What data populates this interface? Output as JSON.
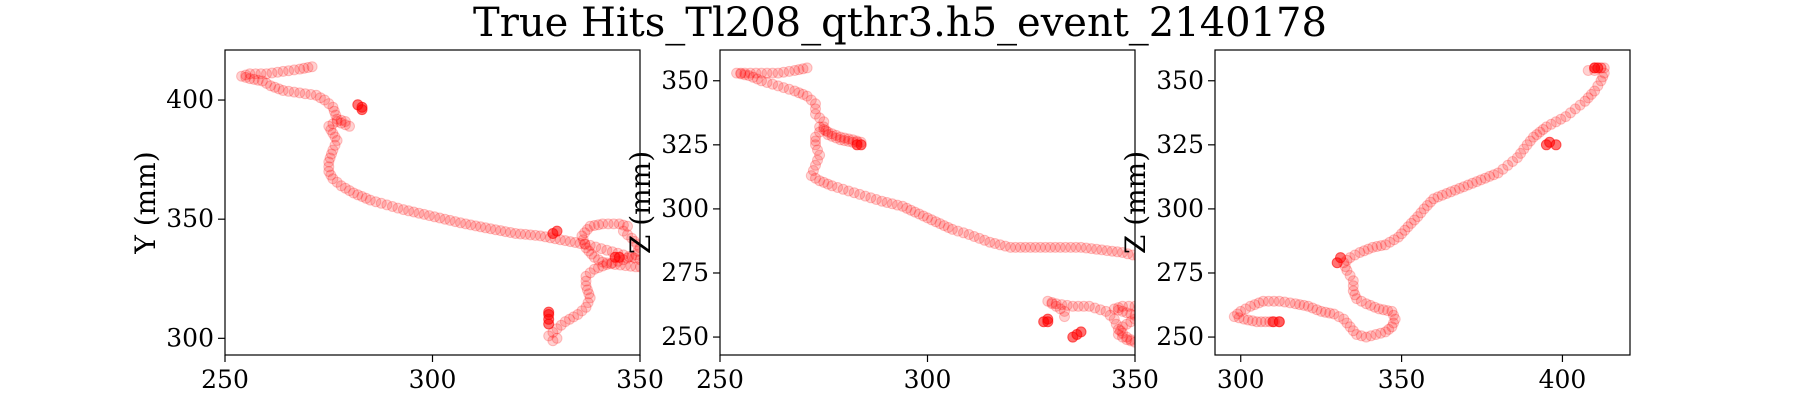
{
  "title": "True Hits_Tl208_qthr3.h5_event_2140178",
  "chart_data": [
    {
      "type": "scatter",
      "xlabel": "",
      "ylabel": "Y (mm)",
      "xlim": [
        250,
        350
      ],
      "ylim": [
        293,
        421
      ],
      "xticks": [
        250,
        300,
        350
      ],
      "yticks": [
        300,
        350,
        400
      ],
      "color": "#ff0000",
      "trace": [
        [
          271,
          414
        ],
        [
          268,
          413
        ],
        [
          264,
          412
        ],
        [
          260,
          411
        ],
        [
          256,
          411
        ],
        [
          254,
          410
        ],
        [
          256,
          409
        ],
        [
          259,
          408
        ],
        [
          261,
          406
        ],
        [
          264,
          404
        ],
        [
          268,
          403
        ],
        [
          272,
          402
        ],
        [
          274,
          400
        ],
        [
          276,
          397
        ],
        [
          277,
          392
        ],
        [
          279,
          391
        ],
        [
          280,
          389
        ],
        [
          277,
          391
        ],
        [
          275,
          389
        ],
        [
          276,
          386
        ],
        [
          277,
          383
        ],
        [
          276,
          379
        ],
        [
          275,
          374
        ],
        [
          275,
          370
        ],
        [
          276,
          367
        ],
        [
          278,
          364
        ],
        [
          281,
          361
        ],
        [
          285,
          358
        ],
        [
          289,
          356
        ],
        [
          293,
          354
        ],
        [
          298,
          352
        ],
        [
          303,
          350
        ],
        [
          308,
          348
        ],
        [
          314,
          346
        ],
        [
          320,
          344
        ],
        [
          326,
          343
        ],
        [
          332,
          341
        ],
        [
          338,
          339
        ],
        [
          342,
          337
        ],
        [
          346,
          335
        ],
        [
          350,
          333
        ],
        [
          353,
          332
        ],
        [
          356,
          331
        ],
        [
          359,
          331
        ],
        [
          361,
          331
        ],
        [
          363,
          330
        ],
        [
          360,
          330
        ],
        [
          357,
          329
        ],
        [
          349,
          330
        ],
        [
          344,
          331
        ],
        [
          341,
          332
        ],
        [
          339,
          334
        ],
        [
          337,
          338
        ],
        [
          336,
          343
        ],
        [
          338,
          347
        ],
        [
          341,
          348
        ],
        [
          345,
          348
        ],
        [
          347,
          347
        ],
        [
          346,
          345
        ],
        [
          348,
          342
        ],
        [
          350,
          338
        ],
        [
          349,
          335
        ],
        [
          346,
          333
        ],
        [
          342,
          331
        ],
        [
          339,
          329
        ],
        [
          337,
          326
        ],
        [
          337,
          322
        ],
        [
          338,
          317
        ],
        [
          337,
          313
        ],
        [
          335,
          310
        ],
        [
          332,
          307
        ],
        [
          330,
          304
        ],
        [
          328,
          301
        ],
        [
          329,
          299
        ],
        [
          330,
          300
        ]
      ],
      "dense": [
        [
          283,
          397
        ],
        [
          283,
          396
        ],
        [
          282,
          398
        ],
        [
          328,
          311
        ],
        [
          328,
          310
        ],
        [
          328,
          308
        ],
        [
          328,
          306
        ],
        [
          329,
          344
        ],
        [
          330,
          345
        ],
        [
          344,
          334
        ],
        [
          345,
          334
        ]
      ]
    },
    {
      "type": "scatter",
      "xlabel": "",
      "ylabel": "Z (mm)",
      "xlim": [
        250,
        350
      ],
      "ylim": [
        243,
        362
      ],
      "xticks": [
        250,
        300,
        350
      ],
      "yticks": [
        250,
        275,
        300,
        325,
        350
      ],
      "color": "#ff0000",
      "trace": [
        [
          271,
          355
        ],
        [
          268,
          354
        ],
        [
          264,
          353
        ],
        [
          260,
          353
        ],
        [
          256,
          353
        ],
        [
          254,
          353
        ],
        [
          257,
          352
        ],
        [
          260,
          350
        ],
        [
          264,
          348
        ],
        [
          268,
          346
        ],
        [
          271,
          344
        ],
        [
          273,
          341
        ],
        [
          273,
          337
        ],
        [
          275,
          334
        ],
        [
          274,
          332
        ],
        [
          276,
          330
        ],
        [
          279,
          328
        ],
        [
          282,
          327
        ],
        [
          284,
          326
        ],
        [
          282,
          326
        ],
        [
          279,
          327
        ],
        [
          276,
          329
        ],
        [
          275,
          332
        ],
        [
          274,
          330
        ],
        [
          273,
          328
        ],
        [
          273,
          325
        ],
        [
          274,
          321
        ],
        [
          273,
          317
        ],
        [
          272,
          313
        ],
        [
          274,
          311
        ],
        [
          277,
          309
        ],
        [
          281,
          307
        ],
        [
          285,
          305
        ],
        [
          289,
          303
        ],
        [
          294,
          301
        ],
        [
          298,
          298
        ],
        [
          302,
          295
        ],
        [
          306,
          292
        ],
        [
          310,
          290
        ],
        [
          315,
          287
        ],
        [
          320,
          285
        ],
        [
          326,
          285
        ],
        [
          332,
          285
        ],
        [
          337,
          285
        ],
        [
          342,
          284
        ],
        [
          347,
          283
        ],
        [
          352,
          281
        ],
        [
          357,
          279
        ],
        [
          361,
          278
        ],
        [
          363,
          276
        ],
        [
          364,
          272
        ],
        [
          363,
          268
        ],
        [
          362,
          264
        ],
        [
          358,
          262
        ],
        [
          353,
          261
        ],
        [
          350,
          262
        ],
        [
          347,
          262
        ],
        [
          345,
          261
        ],
        [
          347,
          260
        ],
        [
          349,
          259
        ],
        [
          351,
          258
        ],
        [
          349,
          256
        ],
        [
          347,
          254
        ],
        [
          346,
          251
        ],
        [
          348,
          249
        ],
        [
          350,
          248
        ],
        [
          348,
          250
        ],
        [
          346,
          253
        ],
        [
          345,
          257
        ],
        [
          343,
          260
        ],
        [
          339,
          262
        ],
        [
          335,
          262
        ],
        [
          331,
          263
        ],
        [
          329,
          264
        ],
        [
          331,
          262
        ],
        [
          333,
          260
        ],
        [
          333,
          258
        ]
      ],
      "dense": [
        [
          284,
          325
        ],
        [
          283,
          325
        ],
        [
          329,
          257
        ],
        [
          328,
          256
        ],
        [
          329,
          256
        ],
        [
          336,
          251
        ],
        [
          337,
          252
        ],
        [
          335,
          250
        ]
      ]
    },
    {
      "type": "scatter",
      "xlabel": "",
      "ylabel": "Z (mm)",
      "xlim": [
        292,
        421
      ],
      "ylim": [
        243,
        362
      ],
      "xticks": [
        300,
        350,
        400
      ],
      "yticks": [
        250,
        275,
        300,
        325,
        350
      ],
      "color": "#ff0000",
      "trace": [
        [
          312,
          256
        ],
        [
          309,
          256
        ],
        [
          305,
          256
        ],
        [
          301,
          257
        ],
        [
          298,
          258
        ],
        [
          300,
          260
        ],
        [
          303,
          262
        ],
        [
          307,
          264
        ],
        [
          312,
          264
        ],
        [
          317,
          263
        ],
        [
          321,
          262
        ],
        [
          325,
          260
        ],
        [
          329,
          259
        ],
        [
          332,
          257
        ],
        [
          334,
          254
        ],
        [
          336,
          251
        ],
        [
          339,
          250
        ],
        [
          342,
          251
        ],
        [
          345,
          252
        ],
        [
          347,
          254
        ],
        [
          348,
          257
        ],
        [
          347,
          260
        ],
        [
          343,
          261
        ],
        [
          339,
          263
        ],
        [
          336,
          265
        ],
        [
          335,
          268
        ],
        [
          335,
          272
        ],
        [
          333,
          276
        ],
        [
          332,
          279
        ],
        [
          334,
          281
        ],
        [
          337,
          283
        ],
        [
          341,
          285
        ],
        [
          345,
          286
        ],
        [
          349,
          289
        ],
        [
          352,
          293
        ],
        [
          355,
          297
        ],
        [
          357,
          300
        ],
        [
          360,
          304
        ],
        [
          364,
          306
        ],
        [
          368,
          308
        ],
        [
          372,
          310
        ],
        [
          376,
          312
        ],
        [
          380,
          314
        ],
        [
          383,
          317
        ],
        [
          386,
          320
        ],
        [
          389,
          325
        ],
        [
          391,
          328
        ],
        [
          393,
          330
        ],
        [
          395,
          332
        ],
        [
          398,
          334
        ],
        [
          401,
          336
        ],
        [
          404,
          339
        ],
        [
          407,
          342
        ],
        [
          410,
          346
        ],
        [
          412,
          350
        ],
        [
          413,
          353
        ],
        [
          412,
          355
        ],
        [
          410,
          354
        ],
        [
          408,
          354
        ],
        [
          410,
          355
        ],
        [
          412,
          355
        ],
        [
          413,
          355
        ]
      ],
      "dense": [
        [
          310,
          256
        ],
        [
          312,
          256
        ],
        [
          396,
          326
        ],
        [
          398,
          325
        ],
        [
          395,
          325
        ],
        [
          410,
          355
        ],
        [
          411,
          355
        ],
        [
          331,
          281
        ],
        [
          330,
          279
        ]
      ]
    }
  ]
}
